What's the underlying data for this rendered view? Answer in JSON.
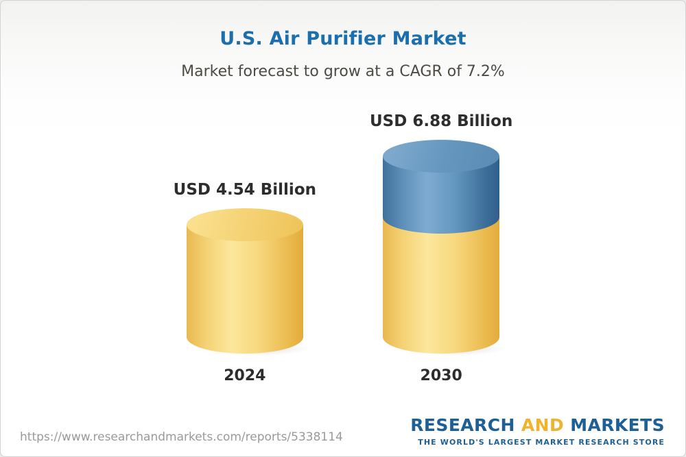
{
  "header": {
    "title": "U.S. Air Purifier Market",
    "subtitle": "Market forecast to grow at a CAGR of 7.2%"
  },
  "chart_data": {
    "type": "bar",
    "title": "U.S. Air Purifier Market",
    "subtitle": "Market forecast to grow at a CAGR of 7.2%",
    "categories": [
      "2024",
      "2030"
    ],
    "values": [
      4.54,
      6.88
    ],
    "value_labels": [
      "USD 4.54 Billion",
      "USD 6.88 Billion"
    ],
    "unit": "USD Billion",
    "cagr_pct": 7.2,
    "growth_segment": {
      "base": 4.54,
      "growth": 2.34
    },
    "legend": "none",
    "colors": {
      "base_bar": "#F3CB66",
      "growth_bar": "#44759F",
      "title_text": "#1B6FAD",
      "label_text": "#2D2D2D"
    }
  },
  "footer": {
    "url": "https://www.researchandmarkets.com/reports/5338114",
    "logo": {
      "research": "RESEARCH",
      "and": " AND ",
      "markets": "MARKETS",
      "tagline": "THE WORLD'S LARGEST MARKET RESEARCH STORE"
    }
  }
}
